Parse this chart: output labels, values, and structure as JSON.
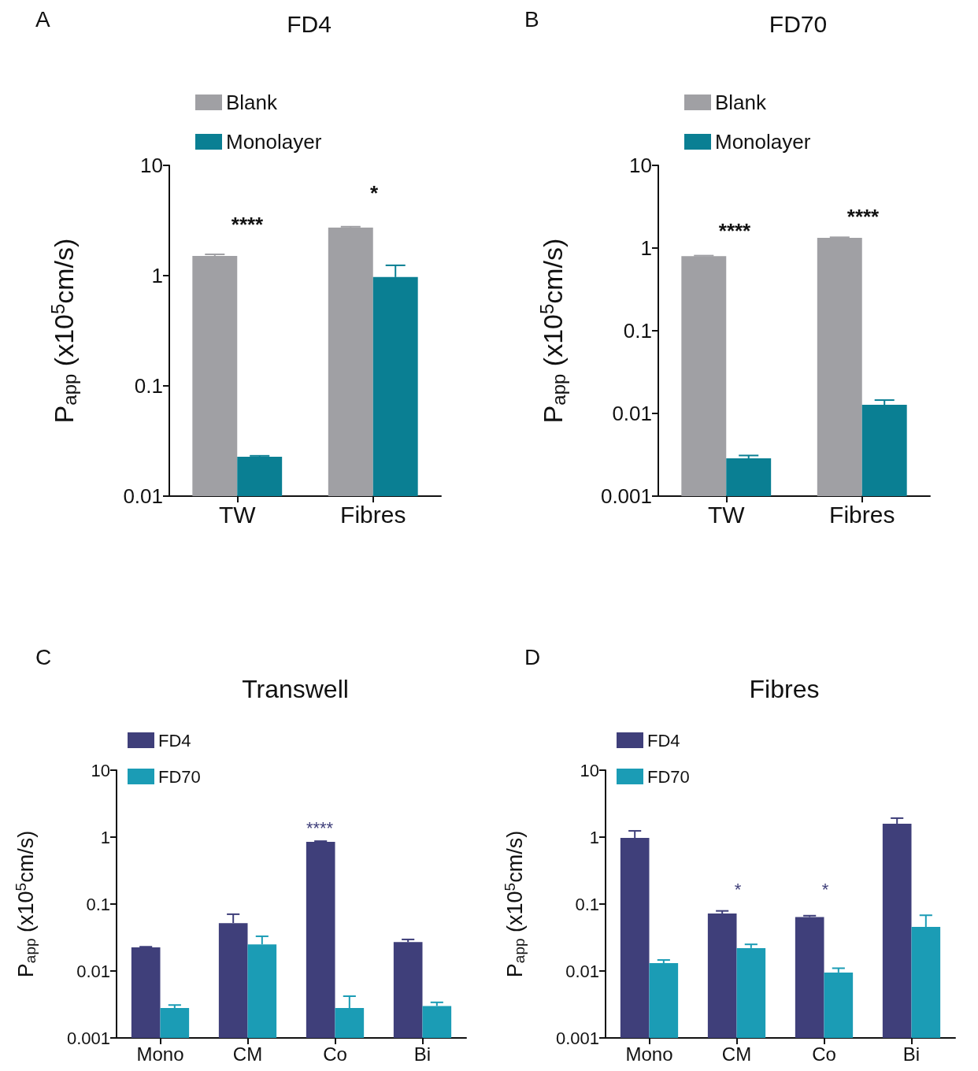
{
  "chart_data": [
    {
      "type": "bar",
      "title": "FD4",
      "ylabel": "P$_{app}$ (x10$^{5}$cm/s)",
      "categories": [
        "TW",
        "Fibres"
      ],
      "log": "y",
      "ylim": [
        0.01,
        10
      ],
      "yticks": [
        0.01,
        0.1,
        1,
        10
      ],
      "grid": false,
      "legend": "top left",
      "series": [
        {
          "name": "Blank",
          "color": "#a0a0a4",
          "values": [
            1.51,
            2.73
          ],
          "errors": [
            [
              1.51,
              1.56
            ],
            [
              2.73,
              2.78
            ]
          ]
        },
        {
          "name": "Monolayer",
          "color": "#0a7f93",
          "values": [
            0.0228,
            0.97
          ],
          "errors": [
            [
              0.0228,
              0.0232
            ],
            [
              0.97,
              1.24
            ]
          ]
        }
      ],
      "annotations": [
        "A",
        "****",
        "*"
      ]
    },
    {
      "type": "bar",
      "title": "FD70",
      "ylabel": "P$_{app}$ (x10$^{5}$cm/s)",
      "categories": [
        "TW",
        "Fibres"
      ],
      "log": "y",
      "ylim": [
        0.001,
        10
      ],
      "yticks": [
        0.001,
        0.01,
        0.1,
        1,
        10
      ],
      "grid": false,
      "legend": "top left",
      "series": [
        {
          "name": "Blank",
          "color": "#a0a0a4",
          "values": [
            0.8,
            1.33
          ],
          "errors": [
            [
              0.8,
              0.81
            ],
            [
              1.33,
              1.35
            ]
          ]
        },
        {
          "name": "Monolayer",
          "color": "#0a7f93",
          "values": [
            0.00286,
            0.0127
          ],
          "errors": [
            [
              0.00286,
              0.0031
            ],
            [
              0.0127,
              0.0145
            ]
          ]
        }
      ],
      "annotations": [
        "B",
        "****",
        "****"
      ]
    },
    {
      "type": "bar",
      "title": "Transwell",
      "ylabel": "P$_{app}$ (x10$^{5}$cm/s)",
      "categories": [
        "Mono",
        "CM",
        "Co",
        "Bi"
      ],
      "log": "y",
      "ylim": [
        0.001,
        10
      ],
      "yticks": [
        0.001,
        0.01,
        0.1,
        1,
        10
      ],
      "grid": false,
      "legend": "top left",
      "series": [
        {
          "name": "FD4",
          "color": "#3f3f7a",
          "values": [
            0.0225,
            0.052,
            0.85,
            0.027
          ],
          "errors": [
            [
              0.0225,
              0.023
            ],
            [
              0.052,
              0.0705
            ],
            [
              0.85,
              0.87
            ],
            [
              0.027,
              0.0296
            ]
          ]
        },
        {
          "name": "FD70",
          "color": "#1b9cb5",
          "values": [
            0.0028,
            0.025,
            0.0028,
            0.003
          ],
          "errors": [
            [
              0.0028,
              0.0031
            ],
            [
              0.025,
              0.033
            ],
            [
              0.0028,
              0.0042
            ],
            [
              0.003,
              0.0034
            ]
          ]
        }
      ],
      "annotations": [
        "C",
        "****"
      ]
    },
    {
      "type": "bar",
      "title": "Fibres",
      "ylabel": "P$_{app}$ (x10$^{5}$cm/s)",
      "categories": [
        "Mono",
        "CM",
        "Co",
        "Bi"
      ],
      "log": "y",
      "ylim": [
        0.001,
        10
      ],
      "yticks": [
        0.001,
        0.01,
        0.1,
        1,
        10
      ],
      "grid": false,
      "legend": "top left",
      "series": [
        {
          "name": "FD4",
          "color": "#3f3f7a",
          "values": [
            0.97,
            0.0723,
            0.064,
            1.58
          ],
          "errors": [
            [
              0.97,
              1.24
            ],
            [
              0.0723,
              0.079
            ],
            [
              0.064,
              0.067
            ],
            [
              1.58,
              1.92
            ]
          ]
        },
        {
          "name": "FD70",
          "color": "#1b9cb5",
          "values": [
            0.0131,
            0.022,
            0.0095,
            0.0456
          ],
          "errors": [
            [
              0.0131,
              0.0146
            ],
            [
              0.022,
              0.025
            ],
            [
              0.0095,
              0.011
            ],
            [
              0.0456,
              0.068
            ]
          ]
        }
      ],
      "annotations": [
        "D",
        "*",
        "*"
      ]
    }
  ]
}
